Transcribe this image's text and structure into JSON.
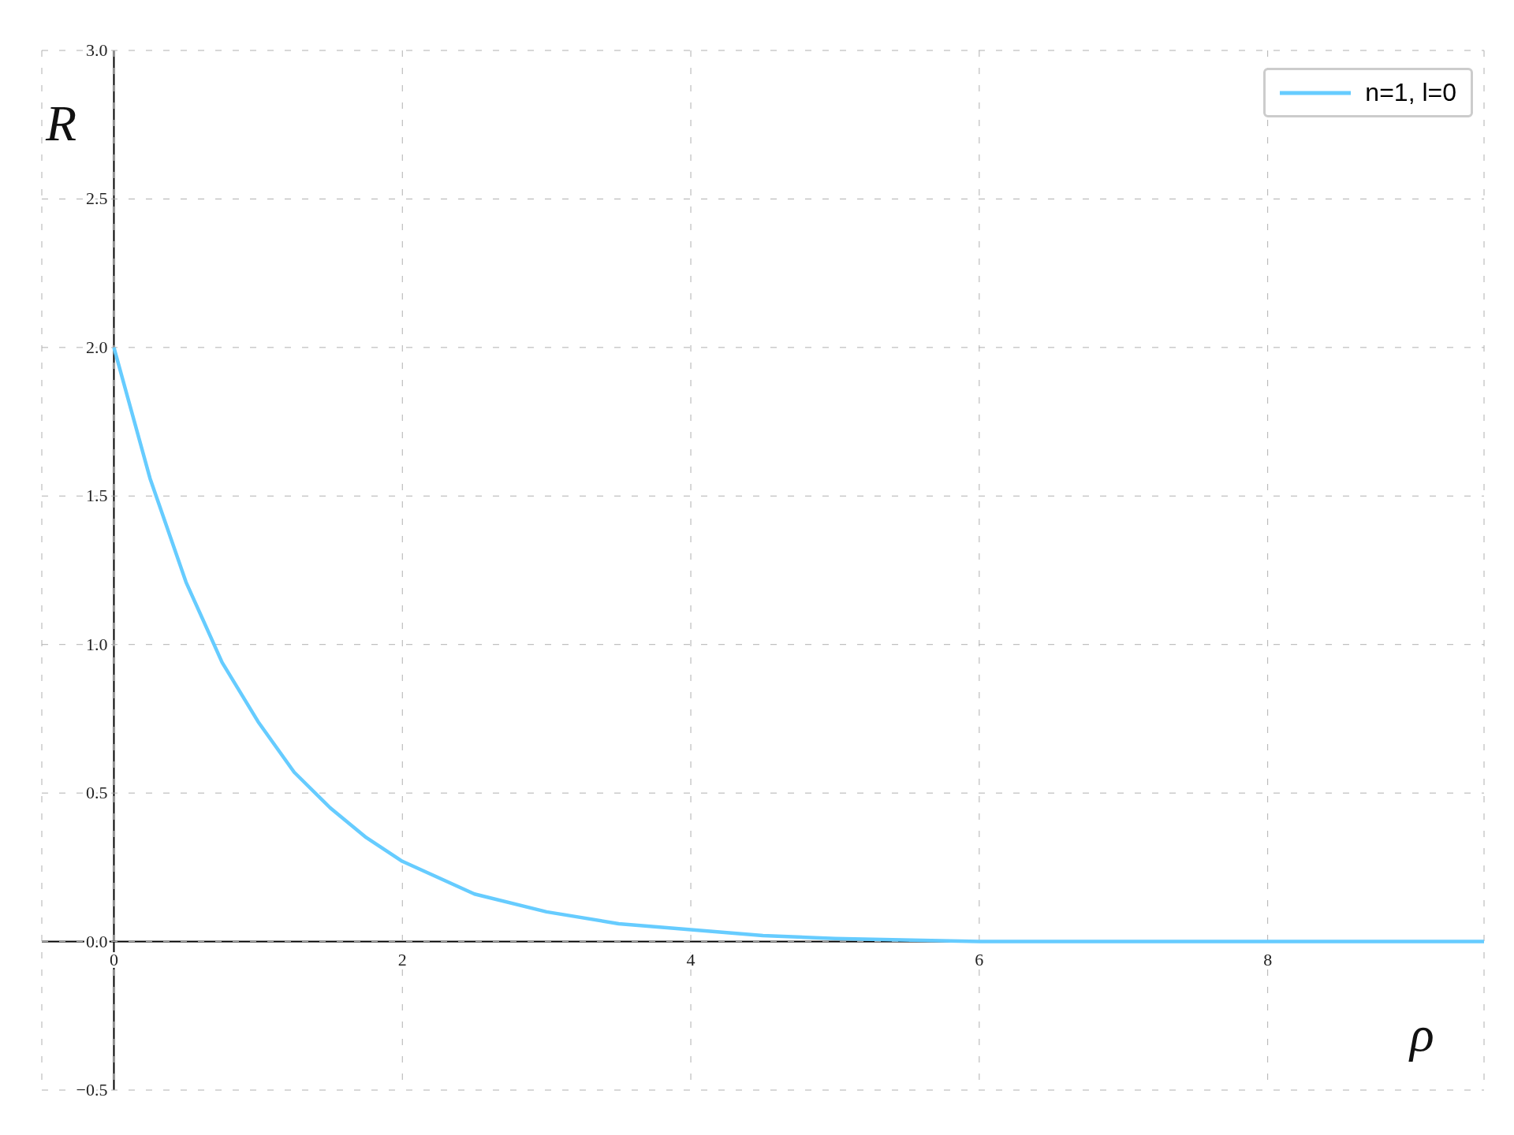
{
  "chart_data": {
    "type": "line",
    "xlabel": "ρ",
    "ylabel": "R",
    "x": [
      0,
      0.25,
      0.5,
      0.75,
      1,
      1.25,
      1.5,
      1.75,
      2,
      2.5,
      3,
      3.5,
      4,
      4.5,
      5,
      6,
      7,
      8,
      9.5
    ],
    "series": [
      {
        "name": "n=1, l=0",
        "color": "#66ccff",
        "values": [
          2,
          1.56,
          1.21,
          0.94,
          0.74,
          0.57,
          0.45,
          0.35,
          0.27,
          0.16,
          0.1,
          0.06,
          0.04,
          0.02,
          0.01,
          0,
          0,
          0,
          0
        ]
      }
    ],
    "xlim": [
      -0.5,
      9.5
    ],
    "xticks": [
      0,
      2,
      4,
      6,
      8
    ],
    "ylim": [
      -0.5,
      3
    ],
    "yticks": [
      {
        "value": -0.5,
        "label": "−0.5"
      },
      {
        "value": 0,
        "label": "0.0"
      },
      {
        "value": 0.5,
        "label": "0.5"
      },
      {
        "value": 1,
        "label": "1.0"
      },
      {
        "value": 1.5,
        "label": "1.5"
      },
      {
        "value": 2,
        "label": "2.0"
      },
      {
        "value": 2.5,
        "label": "2.5"
      },
      {
        "value": 3,
        "label": "3.0"
      }
    ],
    "grid": true,
    "legend": "top right",
    "marker": "none",
    "line_style": "solid"
  }
}
